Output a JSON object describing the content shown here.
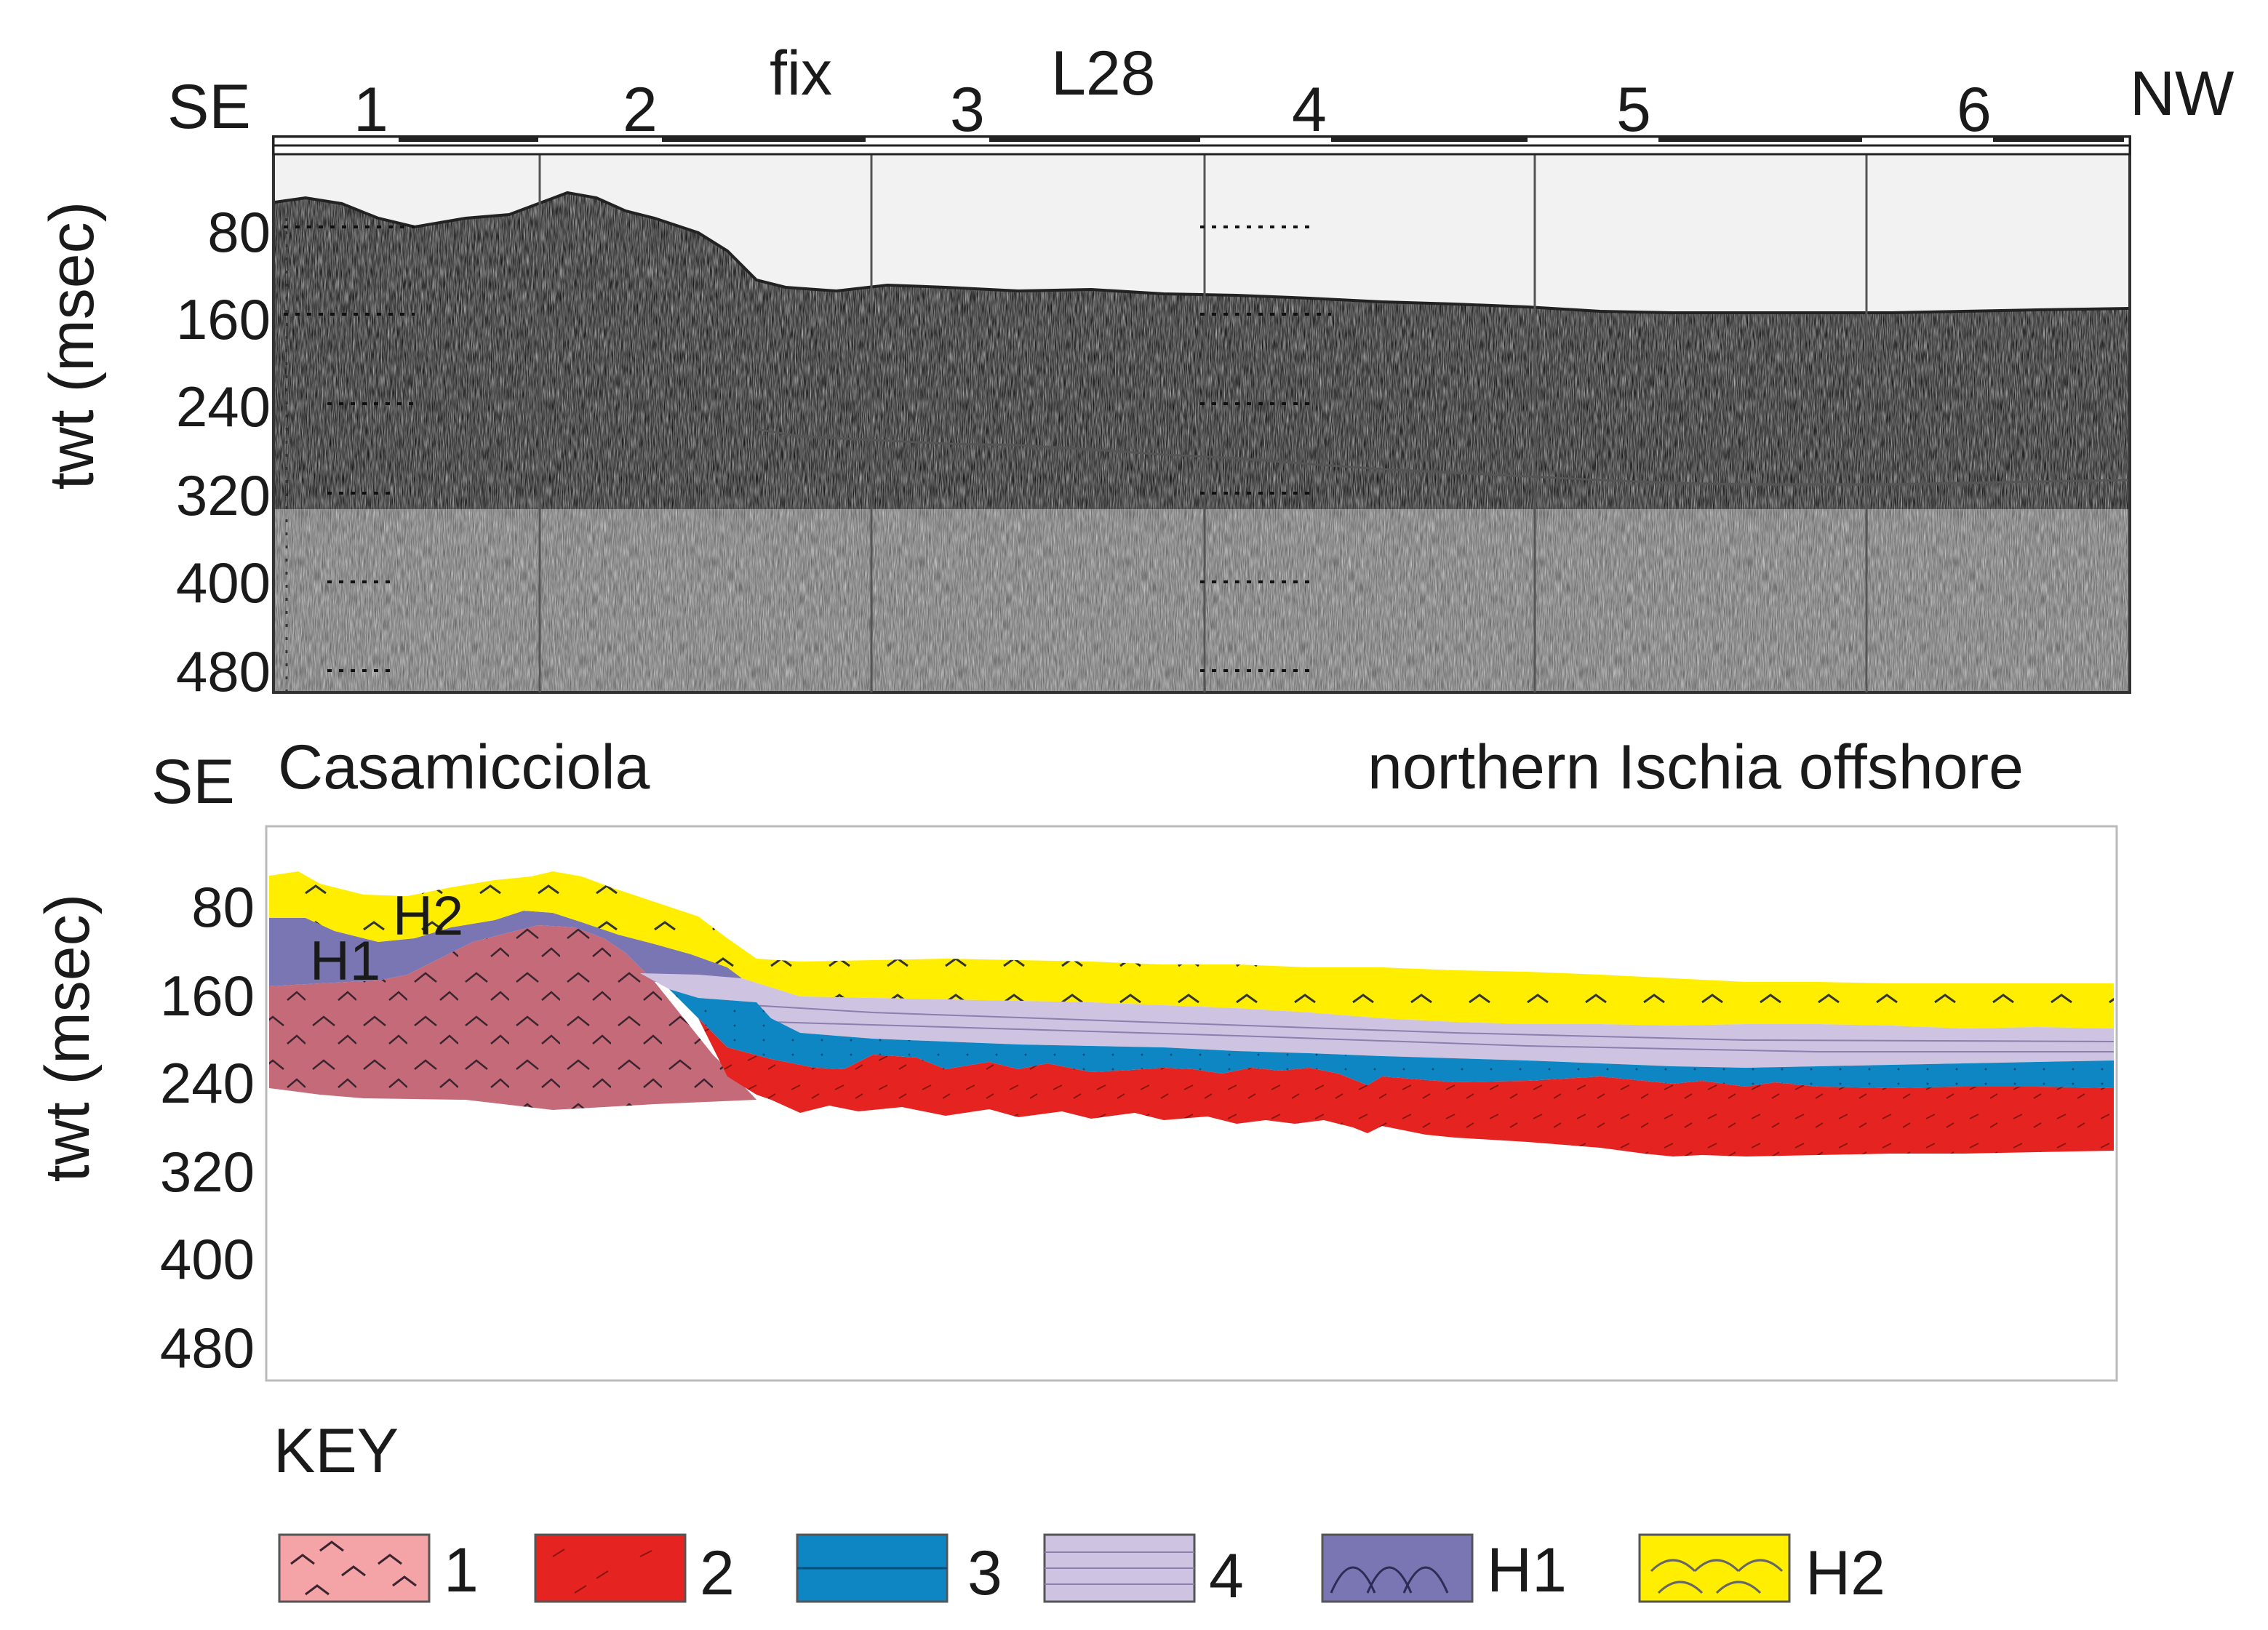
{
  "seismic_profile": {
    "orientation_left": "SE",
    "orientation_right": "NW",
    "fix_label": "fix",
    "line_label": "L28",
    "fix_numbers": [
      "1",
      "2",
      "3",
      "4",
      "5",
      "6"
    ],
    "y_axis_label": "twt (msec)",
    "y_ticks": [
      "80",
      "160",
      "240",
      "320",
      "400",
      "480"
    ]
  },
  "interpreted_section": {
    "orientation_left": "SE",
    "left_location": "Casamicciola",
    "right_location": "northern Ischia offshore",
    "y_axis_label": "twt (msec)",
    "y_ticks": [
      "80",
      "160",
      "240",
      "320",
      "400",
      "480"
    ],
    "unit_labels": [
      "H1",
      "H2"
    ]
  },
  "key": {
    "title": "KEY",
    "items": [
      {
        "label": "1",
        "unit": "1",
        "color": "#c46a78",
        "swatch_color": "#f4a3a6",
        "pattern": "chevrons"
      },
      {
        "label": "2",
        "unit": "2",
        "color": "#e52421",
        "swatch_color": "#e52421",
        "pattern": "dashes"
      },
      {
        "label": "3",
        "unit": "3",
        "color": "#0e86c4",
        "swatch_color": "#0e86c4",
        "pattern": "lines"
      },
      {
        "label": "4",
        "unit": "4",
        "color": "#cfc3e2",
        "swatch_color": "#cfc3e2",
        "pattern": "lines"
      },
      {
        "label": "H1",
        "unit": "H1",
        "color": "#7a76b4",
        "swatch_color": "#7a76b4",
        "pattern": "arcs"
      },
      {
        "label": "H2",
        "unit": "H2",
        "color": "#ffee00",
        "swatch_color": "#ffee00",
        "pattern": "arcs"
      }
    ]
  }
}
